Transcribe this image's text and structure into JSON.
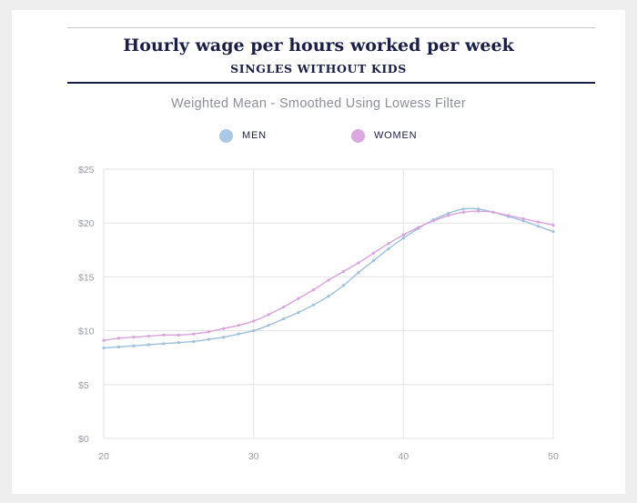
{
  "header": {
    "title": "Hourly wage per hours worked per week",
    "subtitle": "SINGLES WITHOUT KIDS"
  },
  "chart_subtitle": "Weighted Mean - Smoothed Using Lowess Filter",
  "legend": [
    {
      "label": "MEN",
      "color": "#a9c8e3"
    },
    {
      "label": "WOMEN",
      "color": "#dba8e0"
    }
  ],
  "chart_data": {
    "type": "line",
    "title": "Hourly wage per hours worked per week",
    "subtitle": "SINGLES WITHOUT KIDS",
    "xlim": [
      20,
      50
    ],
    "ylim": [
      0,
      25
    ],
    "x_ticks": [
      20,
      30,
      40,
      50
    ],
    "y_ticks": [
      0,
      5,
      10,
      15,
      20,
      25
    ],
    "y_tick_labels": [
      "$0",
      "$5",
      "$10",
      "$15",
      "$20",
      "$25"
    ],
    "grid": true,
    "legend_position": "top",
    "x": [
      20,
      21,
      22,
      23,
      24,
      25,
      26,
      27,
      28,
      29,
      30,
      31,
      32,
      33,
      34,
      35,
      36,
      37,
      38,
      39,
      40,
      41,
      42,
      43,
      44,
      45,
      46,
      47,
      48,
      49,
      50
    ],
    "series": [
      {
        "name": "MEN",
        "color": "#9cc0dd",
        "values": [
          8.4,
          8.5,
          8.6,
          8.7,
          8.8,
          8.9,
          9.0,
          9.2,
          9.4,
          9.7,
          10.0,
          10.5,
          11.1,
          11.7,
          12.4,
          13.2,
          14.2,
          15.4,
          16.5,
          17.6,
          18.6,
          19.5,
          20.3,
          20.9,
          21.3,
          21.3,
          21.0,
          20.6,
          20.2,
          19.7,
          19.2
        ]
      },
      {
        "name": "WOMEN",
        "color": "#d9a3dd",
        "values": [
          9.1,
          9.3,
          9.4,
          9.5,
          9.6,
          9.6,
          9.7,
          9.9,
          10.2,
          10.5,
          10.9,
          11.5,
          12.2,
          13.0,
          13.8,
          14.7,
          15.5,
          16.3,
          17.2,
          18.1,
          18.9,
          19.6,
          20.2,
          20.7,
          21.0,
          21.1,
          21.0,
          20.7,
          20.4,
          20.1,
          19.8
        ]
      }
    ]
  }
}
